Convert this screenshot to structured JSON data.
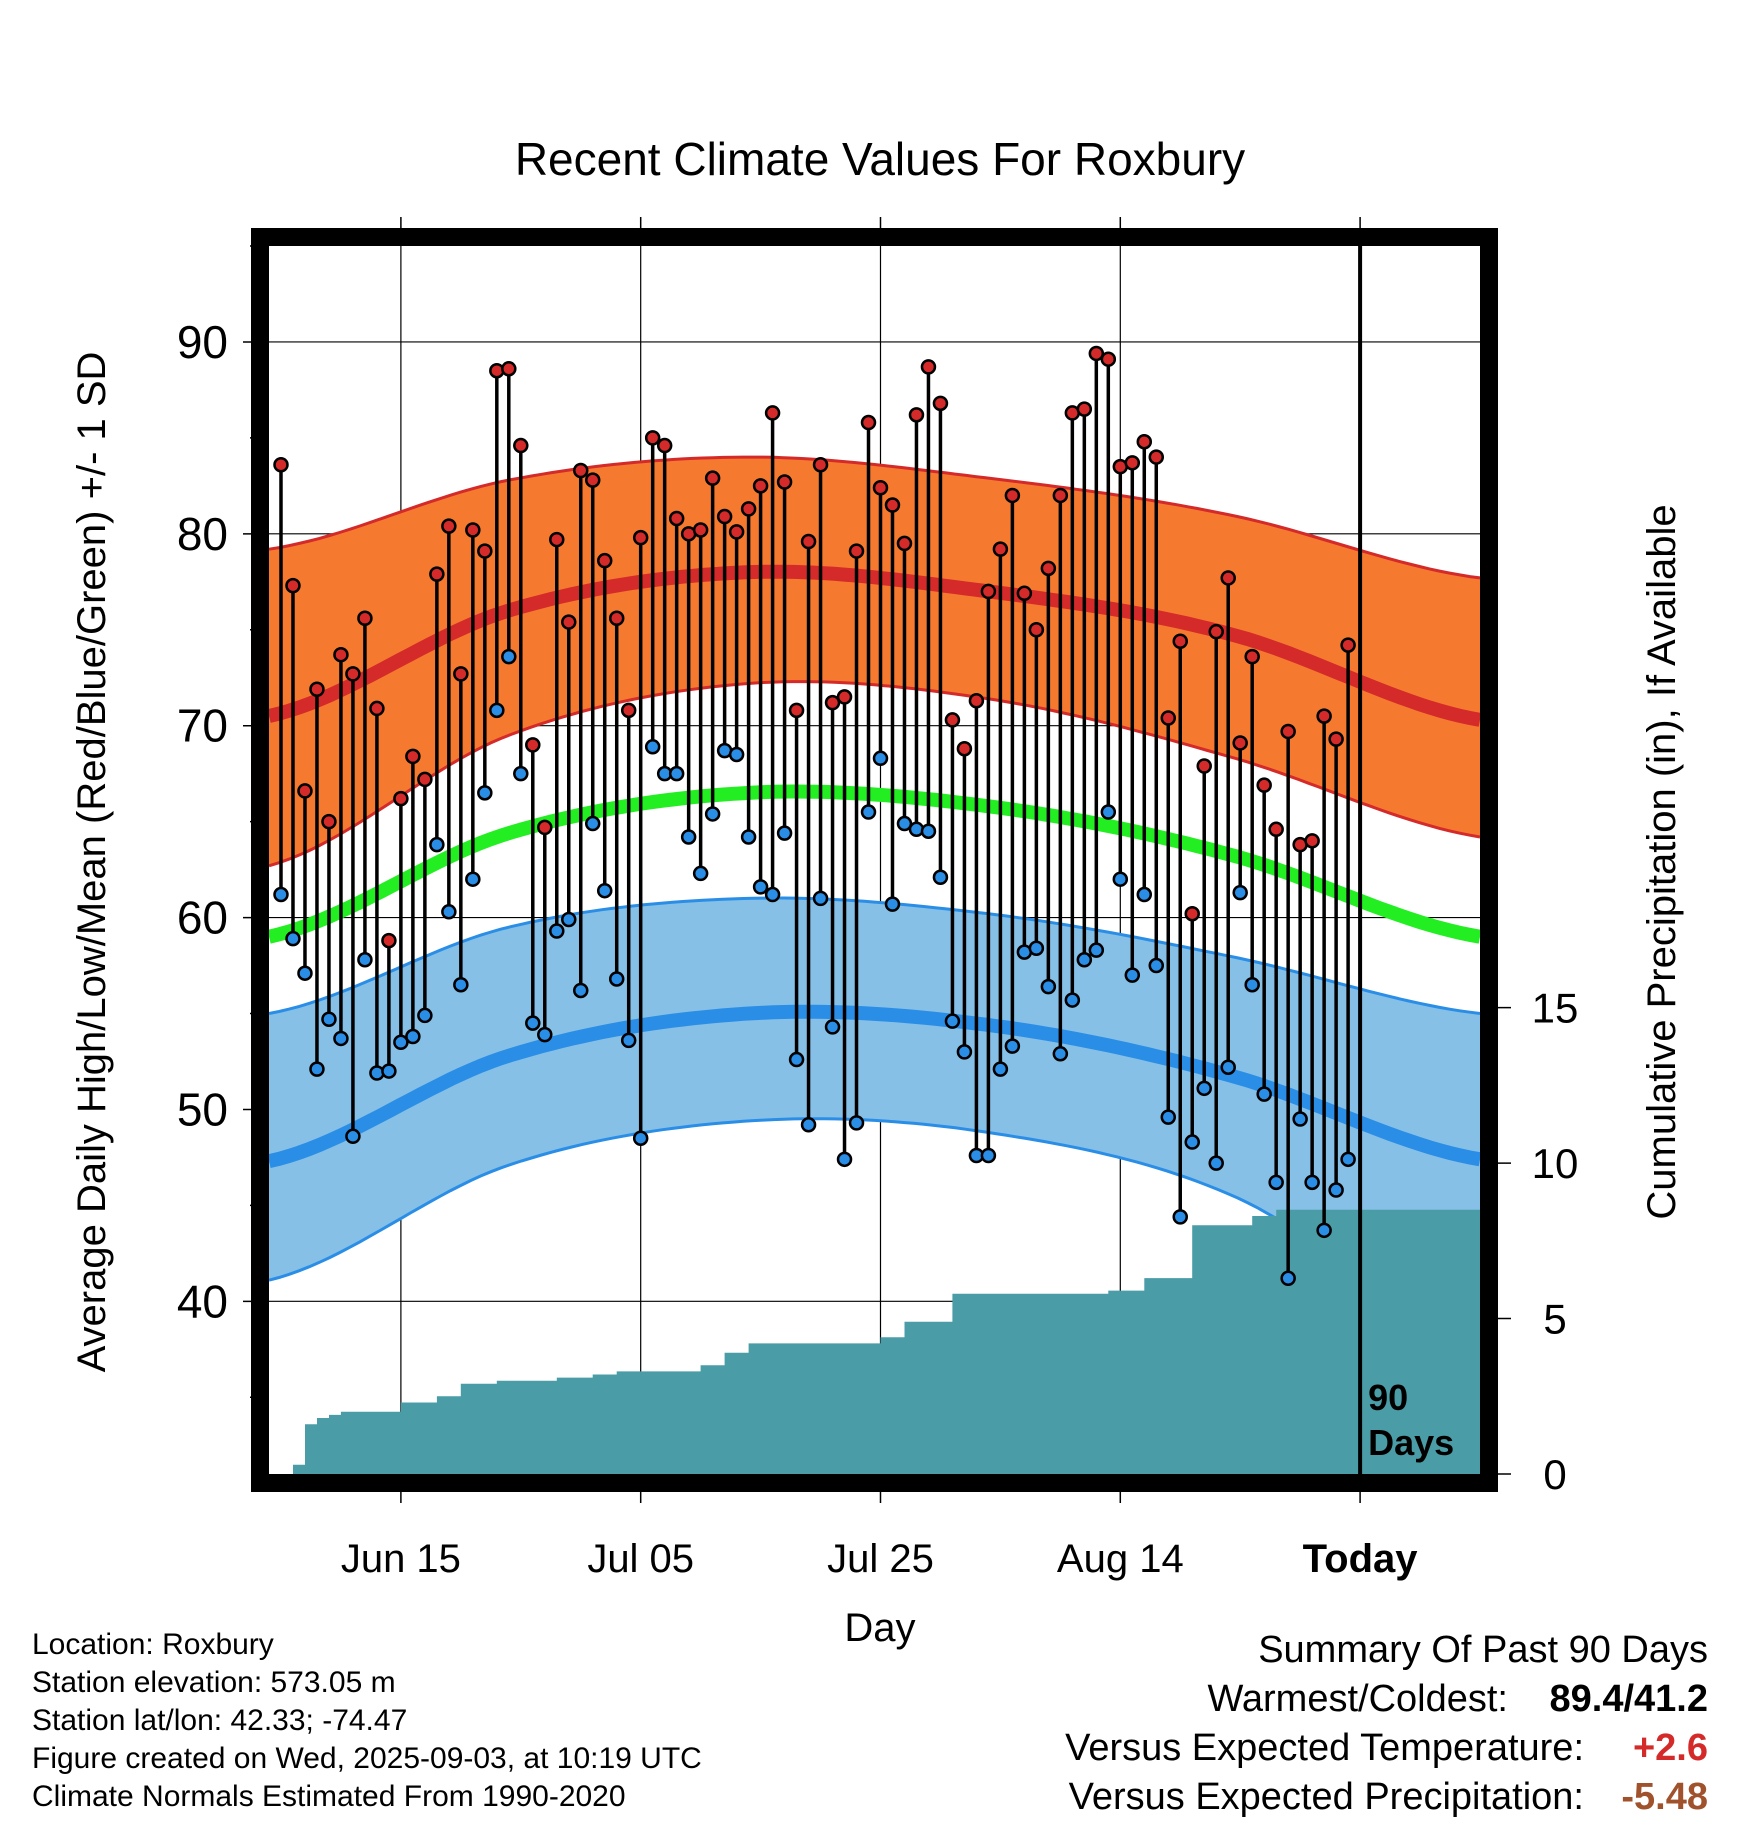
{
  "chart_data": {
    "type": "line",
    "title": "Recent Climate Values For Roxbury",
    "xlabel": "Day",
    "ylabel": "Average Daily High/Low/Mean (Red/Blue/Green) +/- 1 SD",
    "y2label": "Cumulative Precipitation (in), If Available",
    "ylim": [
      31,
      95
    ],
    "y2lim": [
      0,
      39.5
    ],
    "yticks": [
      "40",
      "50",
      "60",
      "70",
      "80",
      "90"
    ],
    "y2ticks": [
      "0",
      "5",
      "10",
      "15"
    ],
    "xticks": [
      "Jun 15",
      "Jul 05",
      "Jul 25",
      "Aug 14",
      "Today"
    ],
    "x_start": "2025-06-04",
    "x_end": "2025-09-13",
    "today": "2025-09-03",
    "grid": true,
    "today_label": [
      "90",
      "Days"
    ],
    "series_colors": {
      "high": "#d42a2a",
      "low": "#2a8ee6",
      "mean": "#22ee22",
      "precip": "#4a9ca6",
      "high_band": "#f57a30",
      "low_band": "#86c0e6"
    },
    "normals": {
      "x": [
        "2025-06-04",
        "2025-06-24",
        "2025-07-14",
        "2025-08-03",
        "2025-08-23",
        "2025-09-13"
      ],
      "high_mean": [
        70.5,
        76.0,
        78.0,
        77.0,
        74.8,
        70.3
      ],
      "high_upper": [
        79.2,
        82.8,
        84.0,
        82.9,
        81.0,
        77.7
      ],
      "high_lower": [
        62.7,
        69.5,
        72.2,
        71.4,
        68.4,
        64.2
      ],
      "mean": [
        59.0,
        64.4,
        66.5,
        65.8,
        63.3,
        59.0
      ],
      "low_mean": [
        47.3,
        52.8,
        55.0,
        54.4,
        51.8,
        47.4
      ],
      "low_upper": [
        55.0,
        59.5,
        61.0,
        60.2,
        58.0,
        55.0
      ],
      "low_lower": [
        41.1,
        47.1,
        49.4,
        48.8,
        45.6,
        38.0
      ]
    },
    "x": [
      "2025-06-05",
      "2025-06-06",
      "2025-06-07",
      "2025-06-08",
      "2025-06-09",
      "2025-06-10",
      "2025-06-11",
      "2025-06-12",
      "2025-06-13",
      "2025-06-14",
      "2025-06-15",
      "2025-06-16",
      "2025-06-17",
      "2025-06-18",
      "2025-06-19",
      "2025-06-20",
      "2025-06-21",
      "2025-06-22",
      "2025-06-23",
      "2025-06-24",
      "2025-06-25",
      "2025-06-26",
      "2025-06-27",
      "2025-06-28",
      "2025-06-29",
      "2025-06-30",
      "2025-07-01",
      "2025-07-02",
      "2025-07-03",
      "2025-07-04",
      "2025-07-05",
      "2025-07-06",
      "2025-07-07",
      "2025-07-08",
      "2025-07-09",
      "2025-07-10",
      "2025-07-11",
      "2025-07-12",
      "2025-07-13",
      "2025-07-14",
      "2025-07-15",
      "2025-07-16",
      "2025-07-17",
      "2025-07-18",
      "2025-07-19",
      "2025-07-20",
      "2025-07-21",
      "2025-07-22",
      "2025-07-23",
      "2025-07-24",
      "2025-07-25",
      "2025-07-26",
      "2025-07-27",
      "2025-07-28",
      "2025-07-29",
      "2025-07-30",
      "2025-07-31",
      "2025-08-01",
      "2025-08-02",
      "2025-08-03",
      "2025-08-04",
      "2025-08-05",
      "2025-08-06",
      "2025-08-07",
      "2025-08-08",
      "2025-08-09",
      "2025-08-10",
      "2025-08-11",
      "2025-08-12",
      "2025-08-13",
      "2025-08-14",
      "2025-08-15",
      "2025-08-16",
      "2025-08-17",
      "2025-08-18",
      "2025-08-19",
      "2025-08-20",
      "2025-08-21",
      "2025-08-22",
      "2025-08-23",
      "2025-08-24",
      "2025-08-25",
      "2025-08-26",
      "2025-08-27",
      "2025-08-28",
      "2025-08-29",
      "2025-08-30",
      "2025-08-31",
      "2025-09-01",
      "2025-09-02"
    ],
    "high": [
      83.6,
      77.3,
      66.6,
      71.9,
      65.0,
      73.7,
      72.7,
      75.6,
      70.9,
      58.8,
      66.2,
      68.4,
      67.2,
      77.9,
      80.4,
      72.7,
      80.2,
      79.1,
      88.5,
      88.6,
      84.6,
      69.0,
      64.7,
      79.7,
      75.4,
      83.3,
      82.8,
      78.6,
      75.6,
      70.8,
      79.8,
      85.0,
      84.6,
      80.8,
      80.0,
      80.2,
      82.9,
      80.9,
      80.1,
      81.3,
      82.5,
      86.3,
      82.7,
      70.8,
      79.6,
      83.6,
      71.2,
      71.5,
      79.1,
      85.8,
      82.4,
      81.5,
      79.5,
      86.2,
      88.7,
      86.8,
      70.3,
      68.8,
      71.3,
      77.0,
      79.2,
      82.0,
      76.9,
      75.0,
      78.2,
      82.0,
      86.3,
      86.5,
      89.4,
      89.1,
      83.5,
      83.7,
      84.8,
      84.0,
      70.4,
      74.4,
      60.2,
      67.9,
      74.9,
      77.7,
      69.1,
      73.6,
      66.9,
      64.6,
      69.7,
      63.8,
      64.0,
      70.5,
      69.3,
      74.2
    ],
    "low": [
      61.2,
      58.9,
      57.1,
      52.1,
      54.7,
      53.7,
      48.6,
      57.8,
      51.9,
      52.0,
      53.5,
      53.8,
      54.9,
      63.8,
      60.3,
      56.5,
      62.0,
      66.5,
      70.8,
      73.6,
      67.5,
      54.5,
      53.9,
      59.3,
      59.9,
      56.2,
      64.9,
      61.4,
      56.8,
      53.6,
      48.5,
      68.9,
      67.5,
      67.5,
      64.2,
      62.3,
      65.4,
      68.7,
      68.5,
      64.2,
      61.6,
      61.2,
      64.4,
      52.6,
      49.2,
      61.0,
      54.3,
      47.4,
      49.3,
      65.5,
      68.3,
      60.7,
      64.9,
      64.6,
      64.5,
      62.1,
      54.6,
      53.0,
      47.6,
      47.6,
      52.1,
      53.3,
      58.2,
      58.4,
      56.4,
      52.9,
      55.7,
      57.8,
      58.3,
      65.5,
      62.0,
      57.0,
      61.2,
      57.5,
      49.6,
      44.4,
      48.3,
      51.1,
      47.2,
      52.2,
      61.3,
      56.5,
      50.8,
      46.2,
      41.2,
      49.5,
      46.2,
      43.7,
      45.8,
      47.4
    ],
    "precip_x": [
      "2025-06-05",
      "2025-06-06",
      "2025-06-07",
      "2025-06-08",
      "2025-06-09",
      "2025-06-10",
      "2025-06-15",
      "2025-06-18",
      "2025-06-20",
      "2025-06-23",
      "2025-06-28",
      "2025-07-01",
      "2025-07-03",
      "2025-07-10",
      "2025-07-12",
      "2025-07-14",
      "2025-07-25",
      "2025-07-27",
      "2025-07-31",
      "2025-08-13",
      "2025-08-16",
      "2025-08-20",
      "2025-08-25",
      "2025-08-27",
      "2025-09-02"
    ],
    "precip": [
      0.0,
      0.3,
      1.6,
      1.8,
      1.9,
      2.0,
      2.3,
      2.5,
      2.9,
      3.0,
      3.1,
      3.2,
      3.3,
      3.5,
      3.9,
      4.2,
      4.4,
      4.9,
      5.8,
      5.9,
      6.3,
      8.0,
      8.3,
      8.5,
      8.5
    ]
  },
  "info": {
    "location": "Location: Roxbury",
    "elevation": "Station elevation: 573.05 m",
    "latlon": "Station lat/lon: 42.33; -74.47",
    "created": "Figure created on Wed, 2025-09-03, at 10:19 UTC",
    "normals": "Climate Normals Estimated From 1990-2020"
  },
  "summary": {
    "title": "Summary Of Past 90 Days",
    "warm_label": "Warmest/Coldest:",
    "warm_value": "89.4/41.2",
    "temp_label": "Versus Expected Temperature:",
    "temp_value": "+2.6",
    "precip_label": "Versus Expected Precipitation:",
    "precip_value": "-5.48"
  }
}
